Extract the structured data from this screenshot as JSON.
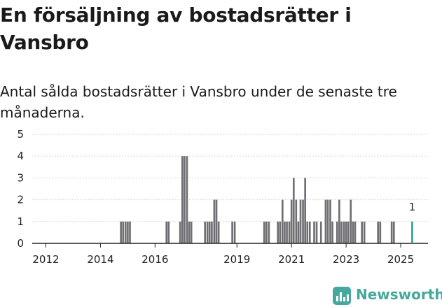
{
  "title": "En försäljning av bostadsrätter i Vansbro",
  "subtitle": "Antal sålda bostadsrätter i Vansbro under de senaste tre månaderna.",
  "brand": {
    "name": "Newsworthy",
    "icon": "newsworthy-bar-chart-icon",
    "color": "#46a89c"
  },
  "chart_data": {
    "type": "bar",
    "title": "",
    "xlabel": "",
    "ylabel": "",
    "ylim": [
      0,
      5
    ],
    "yticks": [
      0,
      1,
      2,
      3,
      4,
      5
    ],
    "xlim": [
      2011.5,
      2026.0
    ],
    "xticks": [
      2012,
      2014,
      2016,
      2019,
      2021,
      2023,
      2025
    ],
    "grid": true,
    "legend": "none",
    "bar_color": "#6e6e73",
    "highlight_color": "#2a9d8f",
    "series": [
      {
        "values": [
          {
            "x": 2014.75,
            "y": 1
          },
          {
            "x": 2014.83,
            "y": 1
          },
          {
            "x": 2014.92,
            "y": 1
          },
          {
            "x": 2015.0,
            "y": 1
          },
          {
            "x": 2015.08,
            "y": 1
          },
          {
            "x": 2016.42,
            "y": 1
          },
          {
            "x": 2016.5,
            "y": 1
          },
          {
            "x": 2016.92,
            "y": 1
          },
          {
            "x": 2017.0,
            "y": 4
          },
          {
            "x": 2017.08,
            "y": 4
          },
          {
            "x": 2017.17,
            "y": 4
          },
          {
            "x": 2017.25,
            "y": 1
          },
          {
            "x": 2017.33,
            "y": 1
          },
          {
            "x": 2017.83,
            "y": 1
          },
          {
            "x": 2017.92,
            "y": 1
          },
          {
            "x": 2018.0,
            "y": 1
          },
          {
            "x": 2018.08,
            "y": 1
          },
          {
            "x": 2018.17,
            "y": 2
          },
          {
            "x": 2018.25,
            "y": 2
          },
          {
            "x": 2018.33,
            "y": 1
          },
          {
            "x": 2018.83,
            "y": 1
          },
          {
            "x": 2018.92,
            "y": 1
          },
          {
            "x": 2020.0,
            "y": 1
          },
          {
            "x": 2020.08,
            "y": 1
          },
          {
            "x": 2020.17,
            "y": 1
          },
          {
            "x": 2020.5,
            "y": 1
          },
          {
            "x": 2020.58,
            "y": 1
          },
          {
            "x": 2020.67,
            "y": 2
          },
          {
            "x": 2020.75,
            "y": 1
          },
          {
            "x": 2020.83,
            "y": 1
          },
          {
            "x": 2020.92,
            "y": 1
          },
          {
            "x": 2021.0,
            "y": 2
          },
          {
            "x": 2021.08,
            "y": 3
          },
          {
            "x": 2021.17,
            "y": 2
          },
          {
            "x": 2021.25,
            "y": 1
          },
          {
            "x": 2021.33,
            "y": 2
          },
          {
            "x": 2021.42,
            "y": 2
          },
          {
            "x": 2021.5,
            "y": 3
          },
          {
            "x": 2021.58,
            "y": 1
          },
          {
            "x": 2021.67,
            "y": 1
          },
          {
            "x": 2021.83,
            "y": 1
          },
          {
            "x": 2021.92,
            "y": 1
          },
          {
            "x": 2022.08,
            "y": 1
          },
          {
            "x": 2022.25,
            "y": 2
          },
          {
            "x": 2022.33,
            "y": 2
          },
          {
            "x": 2022.42,
            "y": 2
          },
          {
            "x": 2022.5,
            "y": 1
          },
          {
            "x": 2022.67,
            "y": 1
          },
          {
            "x": 2022.75,
            "y": 2
          },
          {
            "x": 2022.83,
            "y": 1
          },
          {
            "x": 2022.92,
            "y": 1
          },
          {
            "x": 2023.0,
            "y": 1
          },
          {
            "x": 2023.08,
            "y": 1
          },
          {
            "x": 2023.17,
            "y": 2
          },
          {
            "x": 2023.25,
            "y": 1
          },
          {
            "x": 2023.33,
            "y": 1
          },
          {
            "x": 2023.58,
            "y": 1
          },
          {
            "x": 2023.67,
            "y": 1
          },
          {
            "x": 2024.17,
            "y": 1
          },
          {
            "x": 2024.25,
            "y": 1
          },
          {
            "x": 2024.67,
            "y": 1
          },
          {
            "x": 2024.75,
            "y": 1
          }
        ]
      }
    ],
    "highlight": {
      "x": 2025.42,
      "y": 1,
      "label": "1"
    }
  }
}
